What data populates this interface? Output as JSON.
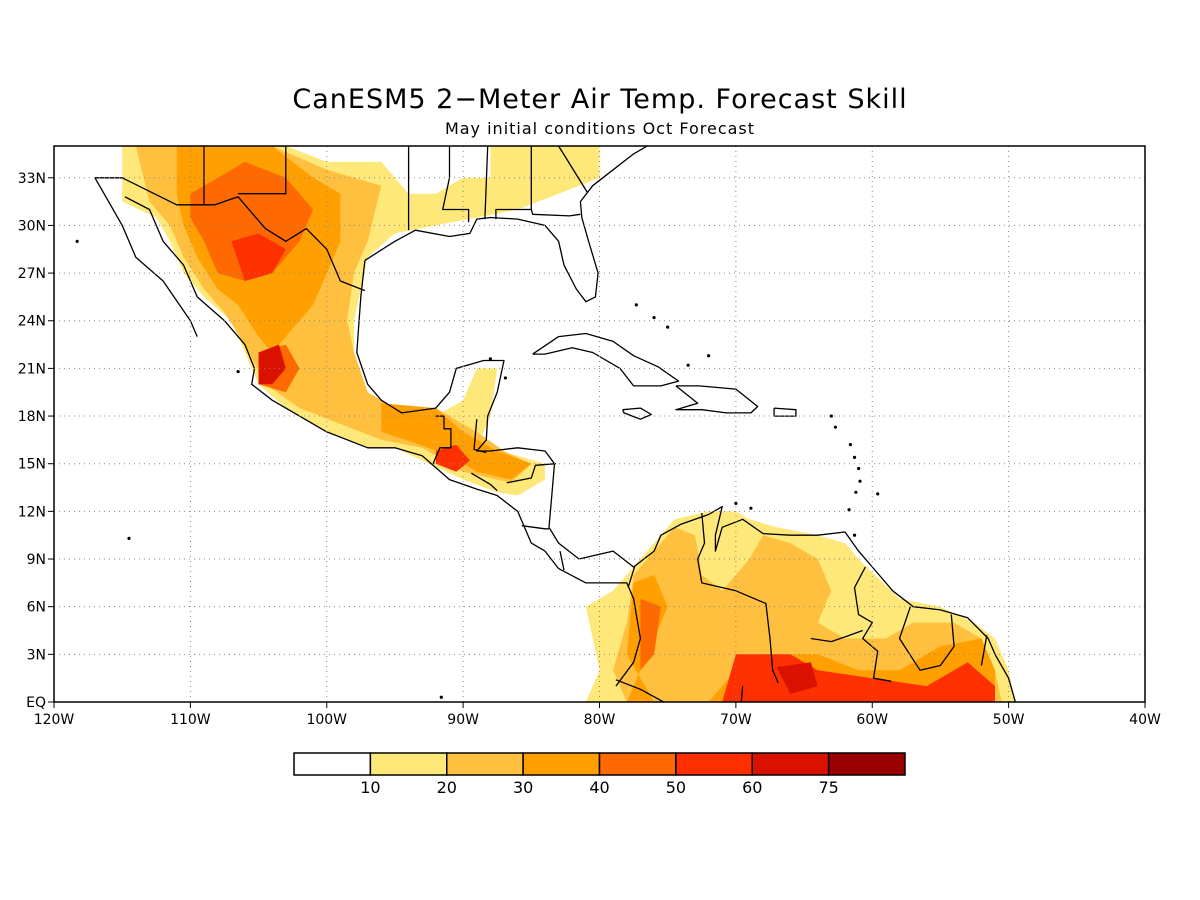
{
  "title": "CanESM5 2−Meter Air Temp. Forecast Skill",
  "subtitle": "May initial conditions   Oct Forecast",
  "map": {
    "lon_range": [
      -120,
      -40
    ],
    "lat_range": [
      0,
      35
    ],
    "lon_ticks": [
      {
        "value": -120,
        "label": "120W"
      },
      {
        "value": -110,
        "label": "110W"
      },
      {
        "value": -100,
        "label": "100W"
      },
      {
        "value": -90,
        "label": "90W"
      },
      {
        "value": -80,
        "label": "80W"
      },
      {
        "value": -70,
        "label": "70W"
      },
      {
        "value": -60,
        "label": "60W"
      },
      {
        "value": -50,
        "label": "50W"
      },
      {
        "value": -40,
        "label": "40W"
      }
    ],
    "lat_ticks": [
      {
        "value": 0,
        "label": "EQ"
      },
      {
        "value": 3,
        "label": "3N"
      },
      {
        "value": 6,
        "label": "6N"
      },
      {
        "value": 9,
        "label": "9N"
      },
      {
        "value": 12,
        "label": "12N"
      },
      {
        "value": 15,
        "label": "15N"
      },
      {
        "value": 18,
        "label": "18N"
      },
      {
        "value": 21,
        "label": "21N"
      },
      {
        "value": 24,
        "label": "24N"
      },
      {
        "value": 27,
        "label": "27N"
      },
      {
        "value": 30,
        "label": "30N"
      },
      {
        "value": 33,
        "label": "33N"
      }
    ],
    "grid": "dotted",
    "skill_regions": [
      {
        "level": 1,
        "poly": [
          [
            -115,
            35
          ],
          [
            -103,
            35
          ],
          [
            -100,
            34
          ],
          [
            -96,
            34
          ],
          [
            -94,
            32
          ],
          [
            -92,
            32
          ],
          [
            -90,
            33
          ],
          [
            -88,
            33
          ],
          [
            -88,
            35
          ],
          [
            -80,
            35
          ],
          [
            -80,
            33
          ],
          [
            -83,
            32
          ],
          [
            -86,
            31
          ],
          [
            -89,
            30.5
          ],
          [
            -92,
            30
          ],
          [
            -95,
            29.5
          ],
          [
            -97,
            28
          ],
          [
            -97.5,
            26
          ],
          [
            -98,
            24
          ],
          [
            -98,
            22
          ],
          [
            -97,
            19.5
          ],
          [
            -95,
            18
          ],
          [
            -92,
            18
          ],
          [
            -90,
            19
          ],
          [
            -89,
            21
          ],
          [
            -87.5,
            21
          ],
          [
            -88,
            18
          ],
          [
            -89,
            16
          ],
          [
            -86,
            15.5
          ],
          [
            -84,
            15
          ],
          [
            -84,
            14
          ],
          [
            -86,
            13
          ],
          [
            -87.5,
            13.2
          ],
          [
            -90,
            14
          ],
          [
            -92.5,
            15
          ],
          [
            -95,
            16
          ],
          [
            -97,
            16
          ],
          [
            -100,
            17
          ],
          [
            -103,
            18.5
          ],
          [
            -105,
            20
          ],
          [
            -106,
            22
          ],
          [
            -107,
            24
          ],
          [
            -109,
            25.5
          ],
          [
            -110.5,
            27
          ],
          [
            -111.5,
            29
          ],
          [
            -112.5,
            30.5
          ],
          [
            -115,
            31.5
          ]
        ]
      },
      {
        "level": 2,
        "poly": [
          [
            -114,
            35
          ],
          [
            -104,
            35
          ],
          [
            -100,
            33.5
          ],
          [
            -96,
            32.5
          ],
          [
            -97,
            29
          ],
          [
            -98,
            27
          ],
          [
            -98.5,
            24
          ],
          [
            -98,
            22
          ],
          [
            -97,
            19.5
          ],
          [
            -95,
            18.5
          ],
          [
            -92,
            18.5
          ],
          [
            -89,
            17
          ],
          [
            -87,
            15.8
          ],
          [
            -85,
            15
          ],
          [
            -86.5,
            13.8
          ],
          [
            -90,
            14.5
          ],
          [
            -93,
            16
          ],
          [
            -96,
            16.5
          ],
          [
            -99,
            17.5
          ],
          [
            -102,
            18.5
          ],
          [
            -104.5,
            20
          ],
          [
            -106,
            22.5
          ],
          [
            -107.5,
            24.5
          ],
          [
            -109,
            26
          ],
          [
            -110.5,
            28
          ],
          [
            -111.5,
            30
          ],
          [
            -113,
            31.5
          ]
        ]
      },
      {
        "level": 3,
        "poly": [
          [
            -111,
            35
          ],
          [
            -104,
            35
          ],
          [
            -101,
            33
          ],
          [
            -99,
            32
          ],
          [
            -99,
            29
          ],
          [
            -100,
            27
          ],
          [
            -101,
            25
          ],
          [
            -102,
            24
          ],
          [
            -103,
            23
          ],
          [
            -104,
            22
          ],
          [
            -105,
            23
          ],
          [
            -106.5,
            25
          ],
          [
            -108,
            26
          ],
          [
            -109.5,
            28
          ],
          [
            -110.5,
            30
          ],
          [
            -111,
            32
          ]
        ]
      },
      {
        "level": 3,
        "poly": [
          [
            -96,
            18.8
          ],
          [
            -92,
            18.5
          ],
          [
            -90,
            17
          ],
          [
            -87.5,
            15.8
          ],
          [
            -85,
            15
          ],
          [
            -86.5,
            14
          ],
          [
            -89,
            14.5
          ],
          [
            -91,
            15.5
          ],
          [
            -93.5,
            16.3
          ],
          [
            -96,
            17
          ]
        ]
      },
      {
        "level": 4,
        "poly": [
          [
            -110,
            32
          ],
          [
            -106,
            34
          ],
          [
            -103,
            33
          ],
          [
            -101,
            31
          ],
          [
            -102,
            29
          ],
          [
            -104,
            27
          ],
          [
            -106,
            26.5
          ],
          [
            -108,
            27
          ],
          [
            -109,
            29
          ],
          [
            -110,
            30.5
          ]
        ]
      },
      {
        "level": 4,
        "poly": [
          [
            -105,
            22
          ],
          [
            -103,
            22.5
          ],
          [
            -102,
            21
          ],
          [
            -103,
            19.5
          ],
          [
            -105,
            20
          ]
        ]
      },
      {
        "level": 5,
        "poly": [
          [
            -107,
            29
          ],
          [
            -105,
            29.5
          ],
          [
            -103,
            28.5
          ],
          [
            -104,
            27
          ],
          [
            -106,
            26.5
          ]
        ]
      },
      {
        "level": 6,
        "poly": [
          [
            -105,
            22
          ],
          [
            -103.5,
            22.5
          ],
          [
            -103,
            21
          ],
          [
            -104,
            20
          ],
          [
            -105,
            20
          ]
        ]
      },
      {
        "level": 5,
        "poly": [
          [
            -92,
            15.8
          ],
          [
            -90.5,
            16.2
          ],
          [
            -89.5,
            15.2
          ],
          [
            -90.5,
            14.5
          ],
          [
            -92,
            15
          ]
        ]
      },
      {
        "level": 1,
        "poly": [
          [
            -81,
            6
          ],
          [
            -79,
            7
          ],
          [
            -77.5,
            8.5
          ],
          [
            -76,
            10
          ],
          [
            -74.5,
            11.5
          ],
          [
            -72,
            12
          ],
          [
            -70,
            12
          ],
          [
            -69,
            11.5
          ],
          [
            -67,
            11
          ],
          [
            -64,
            10.5
          ],
          [
            -62,
            10
          ],
          [
            -61,
            9
          ],
          [
            -58,
            6.5
          ],
          [
            -55,
            6
          ],
          [
            -52.5,
            5
          ],
          [
            -51,
            4
          ],
          [
            -50,
            2
          ],
          [
            -49.5,
            0
          ],
          [
            -81,
            0
          ],
          [
            -80,
            2
          ]
        ]
      },
      {
        "level": 2,
        "poly": [
          [
            -77.5,
            8
          ],
          [
            -76,
            9.5
          ],
          [
            -74.5,
            11
          ],
          [
            -73,
            10.5
          ],
          [
            -72.5,
            8
          ],
          [
            -71,
            7
          ],
          [
            -69,
            9
          ],
          [
            -68,
            10.5
          ],
          [
            -66,
            10
          ],
          [
            -64,
            9
          ],
          [
            -63,
            7
          ],
          [
            -64,
            5
          ],
          [
            -62,
            4
          ],
          [
            -59,
            4
          ],
          [
            -57,
            5
          ],
          [
            -54,
            5
          ],
          [
            -52,
            4
          ],
          [
            -51,
            2
          ],
          [
            -50.5,
            0
          ],
          [
            -78,
            0
          ],
          [
            -79,
            2
          ],
          [
            -78,
            5
          ]
        ]
      },
      {
        "level": 3,
        "poly": [
          [
            -77.5,
            7.5
          ],
          [
            -76,
            8
          ],
          [
            -75,
            6
          ],
          [
            -76,
            4
          ],
          [
            -77,
            2
          ],
          [
            -78,
            0
          ],
          [
            -72,
            0
          ],
          [
            -70,
            2
          ],
          [
            -68,
            3
          ],
          [
            -64,
            3
          ],
          [
            -61,
            2
          ],
          [
            -58,
            2
          ],
          [
            -55,
            3.5
          ],
          [
            -52,
            4
          ],
          [
            -51,
            2
          ],
          [
            -51,
            0
          ],
          [
            -76,
            0
          ],
          [
            -78,
            3
          ]
        ]
      },
      {
        "level": 4,
        "poly": [
          [
            -77,
            6.5
          ],
          [
            -75.5,
            6
          ],
          [
            -76,
            3
          ],
          [
            -77,
            2
          ]
        ]
      },
      {
        "level": 5,
        "poly": [
          [
            -70,
            3
          ],
          [
            -66,
            3
          ],
          [
            -64,
            2
          ],
          [
            -60,
            1.5
          ],
          [
            -56,
            1
          ],
          [
            -53,
            2.5
          ],
          [
            -51,
            1
          ],
          [
            -51,
            0
          ],
          [
            -71,
            0
          ]
        ]
      },
      {
        "level": 6,
        "poly": [
          [
            -67,
            2.2
          ],
          [
            -64.5,
            2.5
          ],
          [
            -64,
            1
          ],
          [
            -66,
            0.5
          ]
        ]
      },
      {
        "level": 1,
        "poly": [
          [
            -120,
            0
          ],
          [
            -120,
            0
          ],
          [
            -120,
            0
          ]
        ]
      }
    ]
  },
  "colorbar": {
    "colors": [
      "#ffffff",
      "#ffe87a",
      "#ffc040",
      "#ff9f00",
      "#ff6a00",
      "#ff3000",
      "#db1100",
      "#9a0000"
    ],
    "labels": [
      "10",
      "20",
      "30",
      "40",
      "50",
      "60",
      "75"
    ]
  }
}
